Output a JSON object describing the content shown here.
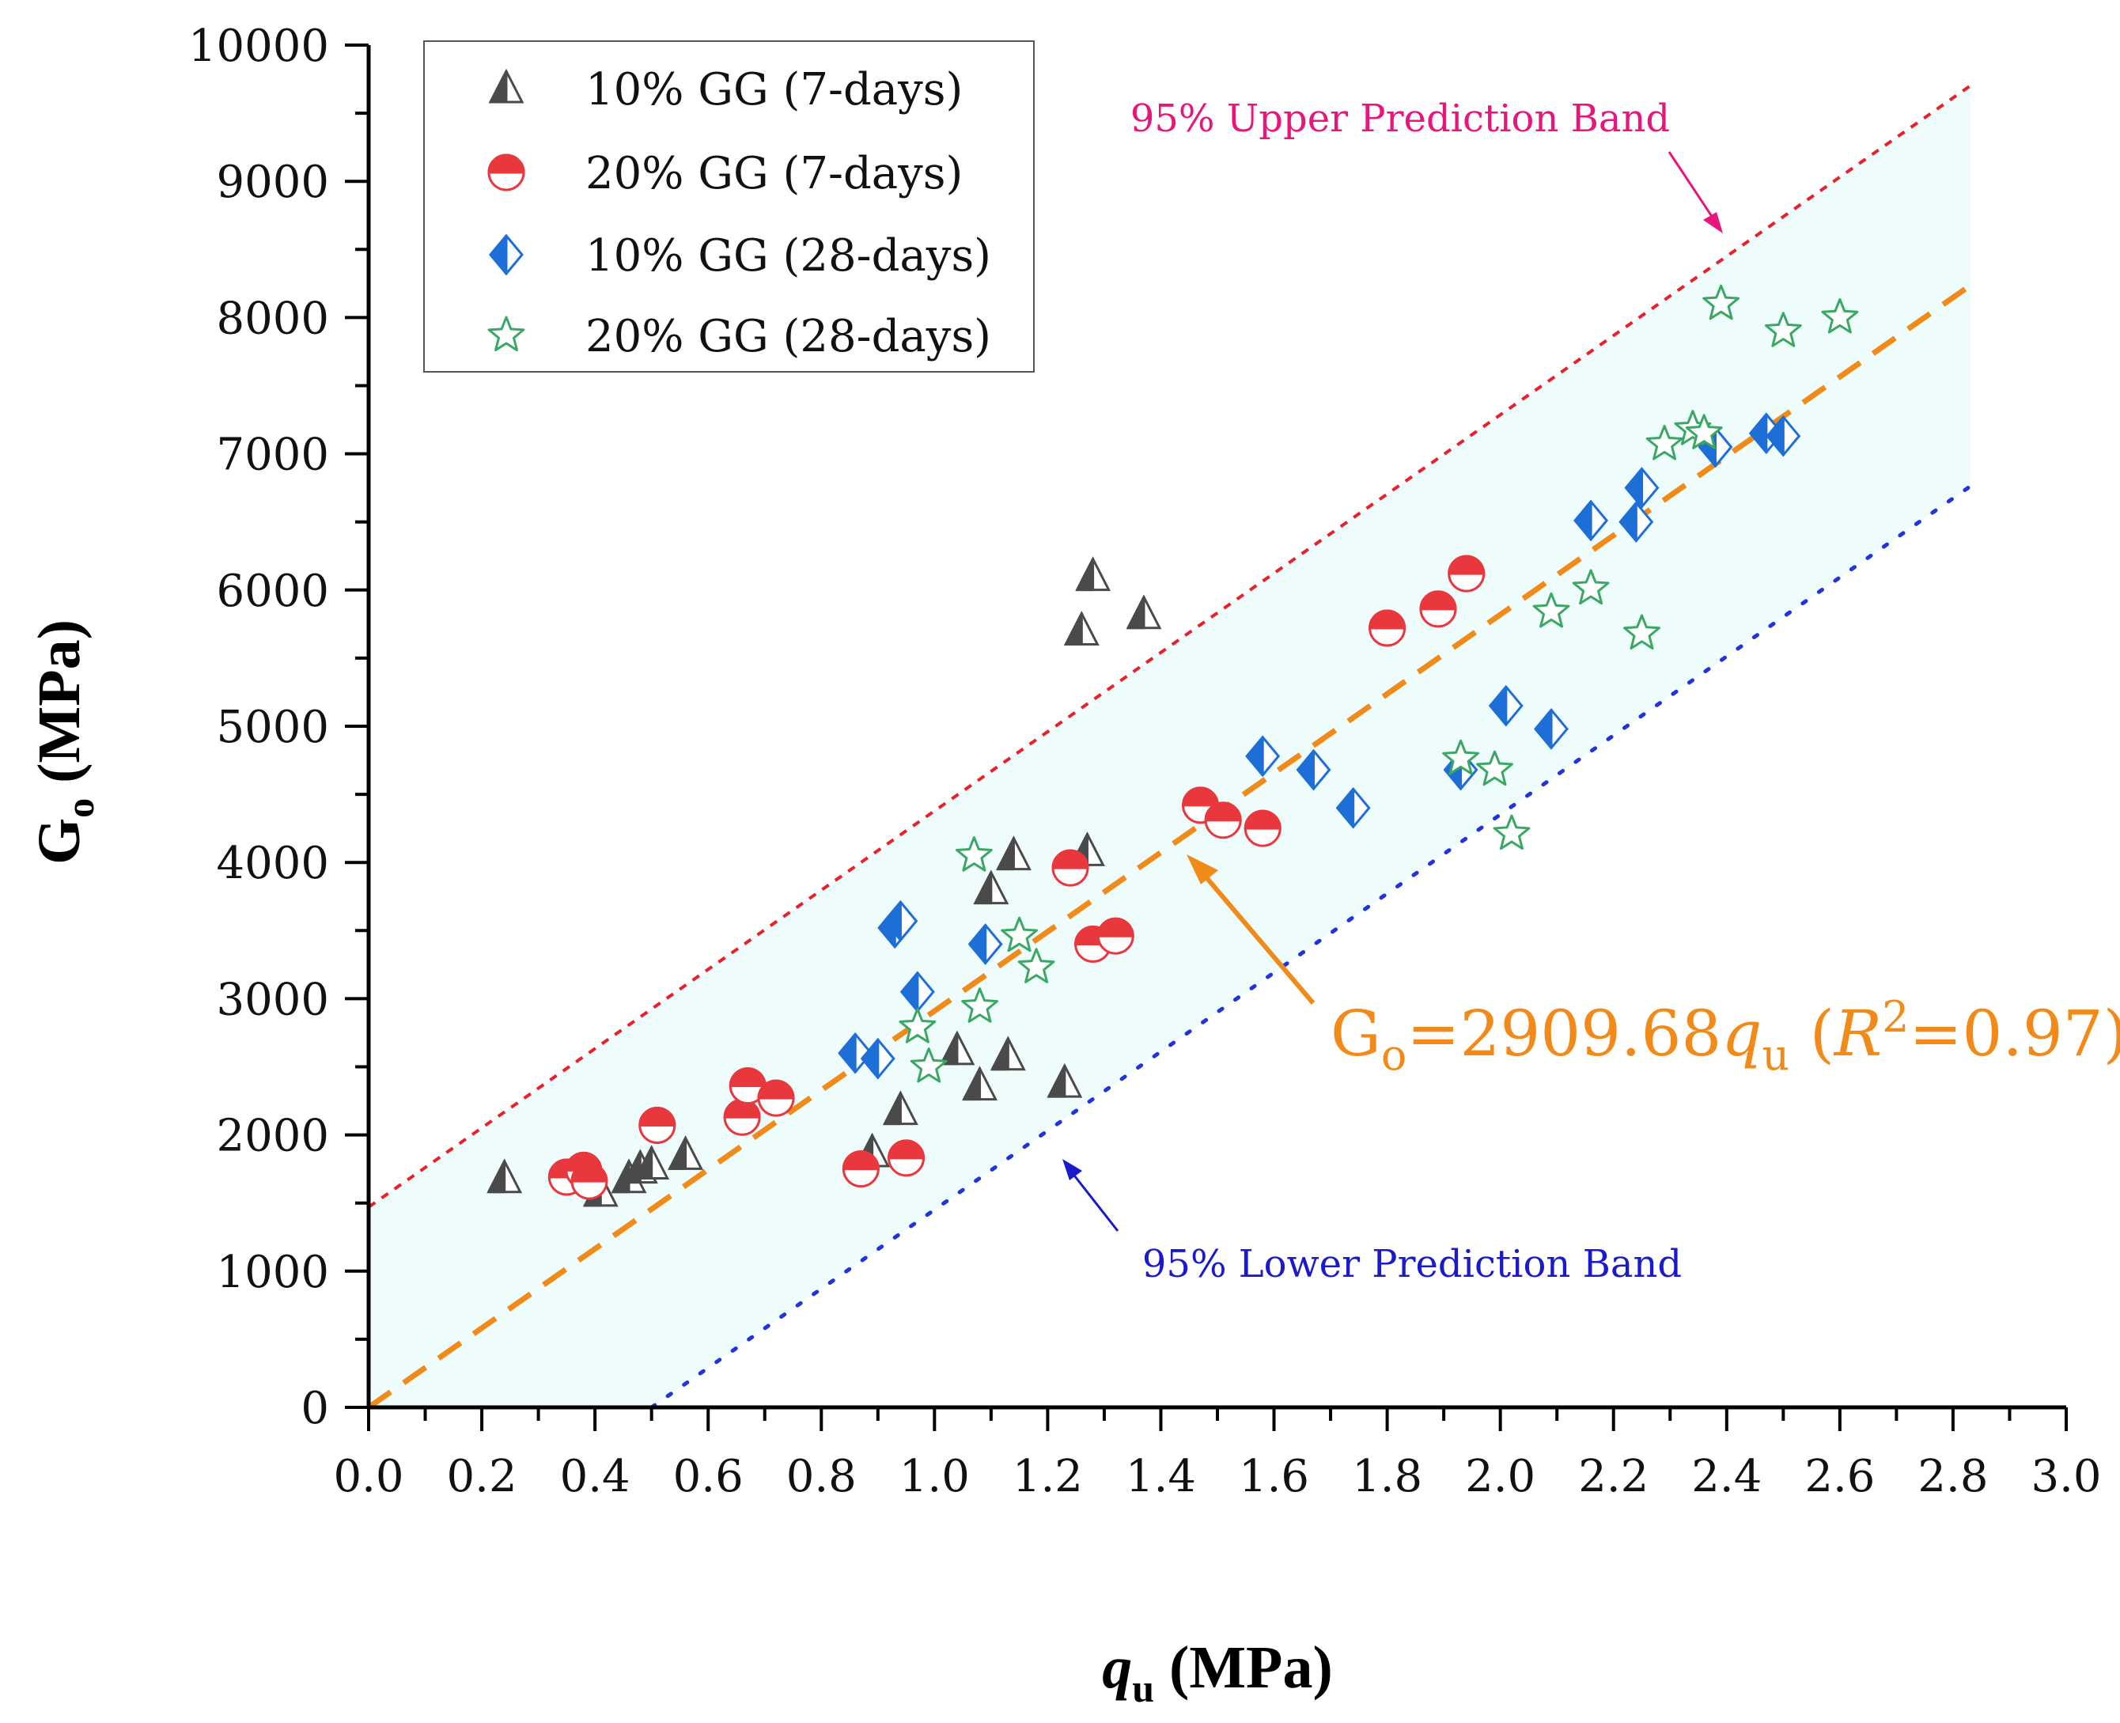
{
  "chart_data": {
    "type": "scatter",
    "xlabel": "qu (MPa)",
    "xlabel_parts": {
      "main": "q",
      "sub": "u",
      "unit": " (MPa)"
    },
    "ylabel": "Go (MPa)",
    "ylabel_parts": {
      "main": "G",
      "sub": "o",
      "unit": " (MPa)"
    },
    "xlim": [
      0.0,
      3.0
    ],
    "ylim": [
      0,
      10000
    ],
    "xticks": [
      0.0,
      0.2,
      0.4,
      0.6,
      0.8,
      1.0,
      1.2,
      1.4,
      1.6,
      1.8,
      2.0,
      2.2,
      2.4,
      2.6,
      2.8,
      3.0
    ],
    "xtick_labels": [
      "0.0",
      "0.2",
      "0.4",
      "0.6",
      "0.8",
      "1.0",
      "1.2",
      "1.4",
      "1.6",
      "1.8",
      "2.0",
      "2.2",
      "2.4",
      "2.6",
      "2.8",
      "3.0"
    ],
    "yticks": [
      0,
      1000,
      2000,
      3000,
      4000,
      5000,
      6000,
      7000,
      8000,
      9000,
      10000
    ],
    "ytick_labels": [
      "0",
      "1000",
      "2000",
      "3000",
      "4000",
      "5000",
      "6000",
      "7000",
      "8000",
      "9000",
      "10000"
    ],
    "series": [
      {
        "name": "10% GG (7-days)",
        "marker": "triangle",
        "color": "#4a4a4a",
        "points": [
          [
            0.24,
            1680
          ],
          [
            0.41,
            1580
          ],
          [
            0.46,
            1680
          ],
          [
            0.48,
            1750
          ],
          [
            0.5,
            1780
          ],
          [
            0.56,
            1850
          ],
          [
            0.89,
            1870
          ],
          [
            0.94,
            2180
          ],
          [
            1.04,
            2620
          ],
          [
            1.08,
            2360
          ],
          [
            1.13,
            2580
          ],
          [
            1.23,
            2380
          ],
          [
            1.1,
            3800
          ],
          [
            1.14,
            4050
          ],
          [
            1.27,
            4080
          ],
          [
            1.26,
            5700
          ],
          [
            1.28,
            6100
          ],
          [
            1.37,
            5820
          ]
        ]
      },
      {
        "name": "20% GG (7-days)",
        "marker": "half-circle",
        "color": "#e8383d",
        "points": [
          [
            0.35,
            1690
          ],
          [
            0.38,
            1740
          ],
          [
            0.39,
            1660
          ],
          [
            0.51,
            2070
          ],
          [
            0.66,
            2130
          ],
          [
            0.67,
            2360
          ],
          [
            0.72,
            2270
          ],
          [
            0.87,
            1750
          ],
          [
            0.95,
            1830
          ],
          [
            1.24,
            3960
          ],
          [
            1.28,
            3400
          ],
          [
            1.32,
            3460
          ],
          [
            1.47,
            4420
          ],
          [
            1.51,
            4310
          ],
          [
            1.58,
            4250
          ],
          [
            1.8,
            5720
          ],
          [
            1.89,
            5860
          ],
          [
            1.94,
            6120
          ]
        ]
      },
      {
        "name": "10% GG (28-days)",
        "marker": "half-diamond",
        "color": "#1e6ed8",
        "points": [
          [
            0.86,
            2600
          ],
          [
            0.9,
            2560
          ],
          [
            0.93,
            3520
          ],
          [
            0.94,
            3570
          ],
          [
            0.97,
            3050
          ],
          [
            1.09,
            3400
          ],
          [
            1.58,
            4780
          ],
          [
            1.67,
            4680
          ],
          [
            1.74,
            4400
          ],
          [
            1.93,
            4680
          ],
          [
            2.01,
            5150
          ],
          [
            2.09,
            4980
          ],
          [
            2.16,
            6510
          ],
          [
            2.24,
            6500
          ],
          [
            2.25,
            6750
          ],
          [
            2.38,
            7050
          ],
          [
            2.47,
            7150
          ],
          [
            2.5,
            7130
          ]
        ]
      },
      {
        "name": "20% GG (28-days)",
        "marker": "star",
        "color": "#3aa864",
        "points": [
          [
            0.97,
            2790
          ],
          [
            0.99,
            2500
          ],
          [
            1.07,
            4050
          ],
          [
            1.08,
            2940
          ],
          [
            1.15,
            3460
          ],
          [
            1.18,
            3230
          ],
          [
            1.93,
            4760
          ],
          [
            1.99,
            4680
          ],
          [
            2.02,
            4210
          ],
          [
            2.09,
            5840
          ],
          [
            2.16,
            6010
          ],
          [
            2.25,
            5680
          ],
          [
            2.29,
            7070
          ],
          [
            2.34,
            7180
          ],
          [
            2.36,
            7150
          ],
          [
            2.39,
            8100
          ],
          [
            2.5,
            7900
          ],
          [
            2.6,
            8000
          ]
        ]
      }
    ],
    "fit": {
      "slope": 2909.68,
      "r2": 0.97,
      "x_range": [
        0.0,
        2.83
      ],
      "color": "#f28a1a",
      "label_parts": {
        "g": "G",
        "g_sub": "o",
        "eq": "=2909.68",
        "q": "q",
        "q_sub": "u",
        "open": " (",
        "r": "R",
        "r_sup": "2",
        "rval": "=0.97)"
      }
    },
    "upper_band": {
      "label": "95% Upper Prediction Band",
      "color": "#e8157a",
      "line_color": "#e8202a",
      "x_range": [
        0.0,
        2.83
      ],
      "y_range": [
        1470,
        9700
      ]
    },
    "lower_band": {
      "label": "95% Lower Prediction Band",
      "color": "#1a1acc",
      "line_color": "#2233dd",
      "x_range": [
        0.5,
        2.83
      ],
      "y_range": [
        0,
        6760
      ]
    },
    "band_fill": "#eefcfb"
  }
}
